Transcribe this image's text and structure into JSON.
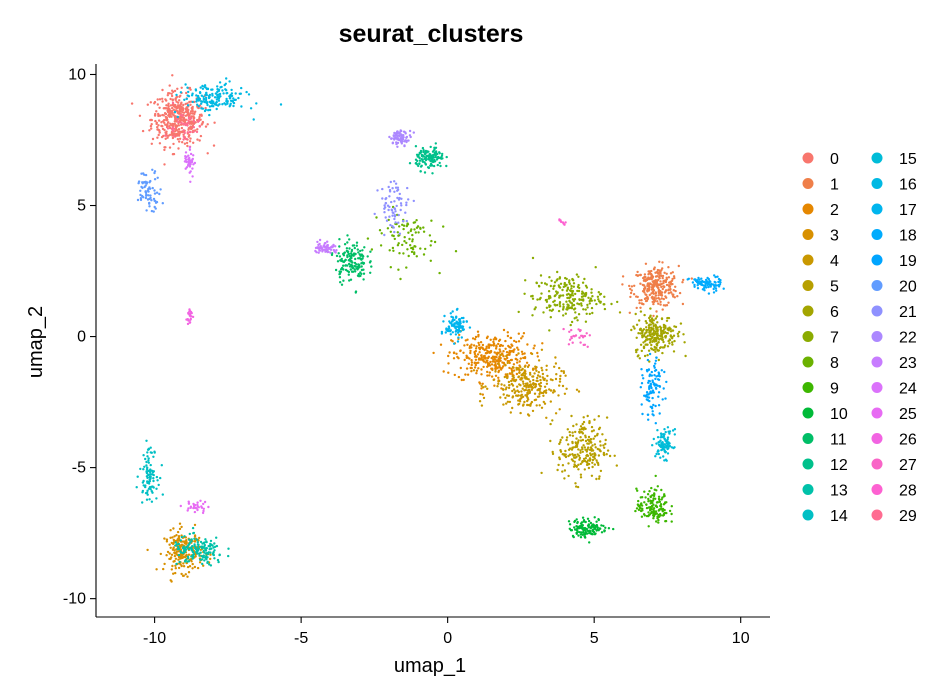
{
  "chart_data": {
    "type": "scatter",
    "title": "seurat_clusters",
    "xlabel": "umap_1",
    "ylabel": "umap_2",
    "xlim": [
      -12,
      11
    ],
    "ylim": [
      -10.7,
      10.4
    ],
    "xticks": [
      -10,
      -5,
      0,
      5,
      10
    ],
    "yticks": [
      -10,
      -5,
      0,
      5,
      10
    ],
    "grid": false,
    "legend_placement": "right",
    "legend_columns": 2,
    "legend_entries": [
      "0",
      "1",
      "2",
      "3",
      "4",
      "5",
      "6",
      "7",
      "8",
      "9",
      "10",
      "11",
      "12",
      "13",
      "14",
      "15",
      "16",
      "17",
      "18",
      "19",
      "20",
      "21",
      "22",
      "23",
      "24",
      "25",
      "26",
      "27",
      "28",
      "29"
    ],
    "colors": [
      "#F8766D",
      "#EF7F49",
      "#E58700",
      "#D89000",
      "#C99800",
      "#B79F00",
      "#A3A500",
      "#8BAB00",
      "#6BB100",
      "#3DB700",
      "#00BA38",
      "#00BE67",
      "#00C08B",
      "#00C1A9",
      "#00BFC4",
      "#00BCD8",
      "#00B9E3",
      "#00B5EE",
      "#00ABFD",
      "#00A5FF",
      "#619CFF",
      "#8F91FF",
      "#AC88FF",
      "#C77CFF",
      "#DB72FB",
      "#E76BF3",
      "#F264E2",
      "#F964C7",
      "#FD61D1",
      "#FF6C91"
    ],
    "clusters": [
      {
        "cluster": 0,
        "center": [
          -9.2,
          8.3
        ],
        "spread": [
          0.75,
          0.85
        ],
        "n": 420
      },
      {
        "cluster": 1,
        "center": [
          7.1,
          1.9
        ],
        "spread": [
          0.65,
          0.65
        ],
        "n": 280
      },
      {
        "cluster": 2,
        "center": [
          1.5,
          -0.8
        ],
        "spread": [
          1.1,
          0.75
        ],
        "n": 340
      },
      {
        "cluster": 3,
        "center": [
          -9.0,
          -8.2
        ],
        "spread": [
          0.55,
          0.65
        ],
        "n": 220
      },
      {
        "cluster": 4,
        "center": [
          2.7,
          -1.9
        ],
        "spread": [
          1.0,
          0.8
        ],
        "n": 260
      },
      {
        "cluster": 5,
        "center": [
          4.6,
          -4.3
        ],
        "spread": [
          0.7,
          1.0
        ],
        "n": 220
      },
      {
        "cluster": 6,
        "center": [
          7.1,
          0.1
        ],
        "spread": [
          0.6,
          0.65
        ],
        "n": 230
      },
      {
        "cluster": 7,
        "center": [
          4.1,
          1.5
        ],
        "spread": [
          1.0,
          0.7
        ],
        "n": 210
      },
      {
        "cluster": 8,
        "center": [
          -1.5,
          3.8
        ],
        "spread": [
          0.9,
          0.9
        ],
        "n": 90
      },
      {
        "cluster": 9,
        "center": [
          7.0,
          -6.5
        ],
        "spread": [
          0.45,
          0.55
        ],
        "n": 140
      },
      {
        "cluster": 10,
        "center": [
          4.8,
          -7.3
        ],
        "spread": [
          0.55,
          0.3
        ],
        "n": 130
      },
      {
        "cluster": 11,
        "center": [
          -3.3,
          2.9
        ],
        "spread": [
          0.45,
          0.65
        ],
        "n": 150
      },
      {
        "cluster": 12,
        "center": [
          -0.6,
          6.8
        ],
        "spread": [
          0.4,
          0.35
        ],
        "n": 130
      },
      {
        "cluster": 13,
        "center": [
          -8.5,
          -8.2
        ],
        "spread": [
          0.75,
          0.45
        ],
        "n": 150
      },
      {
        "cluster": 14,
        "center": [
          -10.2,
          -5.2
        ],
        "spread": [
          0.25,
          0.8
        ],
        "n": 90
      },
      {
        "cluster": 15,
        "center": [
          7.4,
          -4.1
        ],
        "spread": [
          0.25,
          0.45
        ],
        "n": 90
      },
      {
        "cluster": 16,
        "center": [
          -8.0,
          9.1
        ],
        "spread": [
          0.9,
          0.45
        ],
        "n": 170
      },
      {
        "cluster": 17,
        "center": [
          0.3,
          0.4
        ],
        "spread": [
          0.3,
          0.4
        ],
        "n": 100
      },
      {
        "cluster": 18,
        "center": [
          8.8,
          2.0
        ],
        "spread": [
          0.45,
          0.25
        ],
        "n": 80
      },
      {
        "cluster": 19,
        "center": [
          7.0,
          -2.0
        ],
        "spread": [
          0.3,
          0.9
        ],
        "n": 100
      },
      {
        "cluster": 20,
        "center": [
          -10.2,
          5.6
        ],
        "spread": [
          0.35,
          0.6
        ],
        "n": 70
      },
      {
        "cluster": 21,
        "center": [
          -1.8,
          5.0
        ],
        "spread": [
          0.45,
          0.8
        ],
        "n": 70
      },
      {
        "cluster": 22,
        "center": [
          -1.6,
          7.6
        ],
        "spread": [
          0.3,
          0.22
        ],
        "n": 70
      },
      {
        "cluster": 23,
        "center": [
          -4.2,
          3.4
        ],
        "spread": [
          0.3,
          0.2
        ],
        "n": 60
      },
      {
        "cluster": 24,
        "center": [
          -8.8,
          6.7
        ],
        "spread": [
          0.15,
          0.45
        ],
        "n": 40
      },
      {
        "cluster": 25,
        "center": [
          -8.6,
          -6.5
        ],
        "spread": [
          0.35,
          0.2
        ],
        "n": 30
      },
      {
        "cluster": 26,
        "center": [
          -8.8,
          0.8
        ],
        "spread": [
          0.08,
          0.3
        ],
        "n": 20
      },
      {
        "cluster": 27,
        "center": [
          4.4,
          0.0
        ],
        "spread": [
          0.4,
          0.3
        ],
        "n": 25
      },
      {
        "cluster": 28,
        "center": [
          3.9,
          4.4
        ],
        "spread": [
          0.15,
          0.1
        ],
        "n": 8
      },
      {
        "cluster": 29,
        "center": [
          -9.0,
          8.0
        ],
        "spread": [
          0.5,
          0.5
        ],
        "n": 40
      }
    ]
  }
}
